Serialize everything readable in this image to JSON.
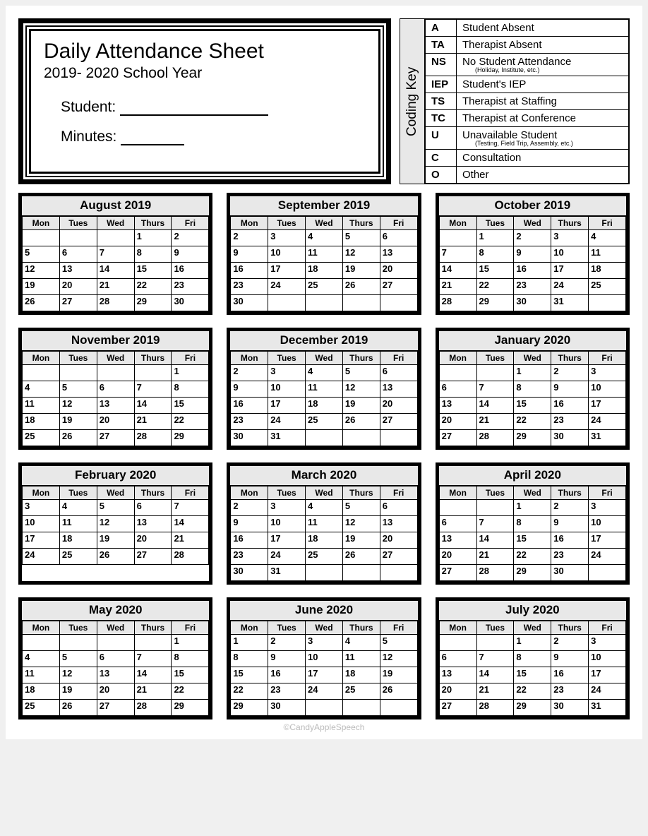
{
  "header": {
    "title": "Daily Attendance Sheet",
    "subtitle": "2019- 2020 School Year",
    "student_label": "Student:",
    "minutes_label": "Minutes:"
  },
  "coding_key": {
    "label": "Coding Key",
    "rows": [
      {
        "code": "A",
        "desc": "Student Absent",
        "note": ""
      },
      {
        "code": "TA",
        "desc": "Therapist Absent",
        "note": ""
      },
      {
        "code": "NS",
        "desc": "No Student Attendance",
        "note": "(Holiday, Institute, etc.)"
      },
      {
        "code": "IEP",
        "desc": "Student's IEP",
        "note": ""
      },
      {
        "code": "TS",
        "desc": "Therapist at Staffing",
        "note": ""
      },
      {
        "code": "TC",
        "desc": "Therapist at Conference",
        "note": ""
      },
      {
        "code": "U",
        "desc": "Unavailable Student",
        "note": "(Testing, Field Trip, Assembly, etc.)"
      },
      {
        "code": "C",
        "desc": "Consultation",
        "note": ""
      },
      {
        "code": "O",
        "desc": "Other",
        "note": ""
      }
    ]
  },
  "weekdays": [
    "Mon",
    "Tues",
    "Wed",
    "Thurs",
    "Fri"
  ],
  "months": [
    {
      "name": "August 2019",
      "weeks": [
        [
          "",
          "",
          "",
          "1",
          "2"
        ],
        [
          "5",
          "6",
          "7",
          "8",
          "9"
        ],
        [
          "12",
          "13",
          "14",
          "15",
          "16"
        ],
        [
          "19",
          "20",
          "21",
          "22",
          "23"
        ],
        [
          "26",
          "27",
          "28",
          "29",
          "30"
        ]
      ]
    },
    {
      "name": "September 2019",
      "weeks": [
        [
          "2",
          "3",
          "4",
          "5",
          "6"
        ],
        [
          "9",
          "10",
          "11",
          "12",
          "13"
        ],
        [
          "16",
          "17",
          "18",
          "19",
          "20"
        ],
        [
          "23",
          "24",
          "25",
          "26",
          "27"
        ],
        [
          "30",
          "",
          "",
          "",
          ""
        ]
      ]
    },
    {
      "name": "October 2019",
      "weeks": [
        [
          "",
          "1",
          "2",
          "3",
          "4"
        ],
        [
          "7",
          "8",
          "9",
          "10",
          "11"
        ],
        [
          "14",
          "15",
          "16",
          "17",
          "18"
        ],
        [
          "21",
          "22",
          "23",
          "24",
          "25"
        ],
        [
          "28",
          "29",
          "30",
          "31",
          ""
        ]
      ]
    },
    {
      "name": "November 2019",
      "weeks": [
        [
          "",
          "",
          "",
          "",
          "1"
        ],
        [
          "4",
          "5",
          "6",
          "7",
          "8"
        ],
        [
          "11",
          "12",
          "13",
          "14",
          "15"
        ],
        [
          "18",
          "19",
          "20",
          "21",
          "22"
        ],
        [
          "25",
          "26",
          "27",
          "28",
          "29"
        ]
      ]
    },
    {
      "name": "December 2019",
      "weeks": [
        [
          "2",
          "3",
          "4",
          "5",
          "6"
        ],
        [
          "9",
          "10",
          "11",
          "12",
          "13"
        ],
        [
          "16",
          "17",
          "18",
          "19",
          "20"
        ],
        [
          "23",
          "24",
          "25",
          "26",
          "27"
        ],
        [
          "30",
          "31",
          "",
          "",
          ""
        ]
      ]
    },
    {
      "name": "January 2020",
      "weeks": [
        [
          "",
          "",
          "1",
          "2",
          "3"
        ],
        [
          "6",
          "7",
          "8",
          "9",
          "10"
        ],
        [
          "13",
          "14",
          "15",
          "16",
          "17"
        ],
        [
          "20",
          "21",
          "22",
          "23",
          "24"
        ],
        [
          "27",
          "28",
          "29",
          "30",
          "31"
        ]
      ]
    },
    {
      "name": "February 2020",
      "weeks": [
        [
          "3",
          "4",
          "5",
          "6",
          "7"
        ],
        [
          "10",
          "11",
          "12",
          "13",
          "14"
        ],
        [
          "17",
          "18",
          "19",
          "20",
          "21"
        ],
        [
          "24",
          "25",
          "26",
          "27",
          "28"
        ]
      ]
    },
    {
      "name": "March 2020",
      "weeks": [
        [
          "2",
          "3",
          "4",
          "5",
          "6"
        ],
        [
          "9",
          "10",
          "11",
          "12",
          "13"
        ],
        [
          "16",
          "17",
          "18",
          "19",
          "20"
        ],
        [
          "23",
          "24",
          "25",
          "26",
          "27"
        ],
        [
          "30",
          "31",
          "",
          "",
          ""
        ]
      ]
    },
    {
      "name": "April 2020",
      "weeks": [
        [
          "",
          "",
          "1",
          "2",
          "3"
        ],
        [
          "6",
          "7",
          "8",
          "9",
          "10"
        ],
        [
          "13",
          "14",
          "15",
          "16",
          "17"
        ],
        [
          "20",
          "21",
          "22",
          "23",
          "24"
        ],
        [
          "27",
          "28",
          "29",
          "30",
          ""
        ]
      ]
    },
    {
      "name": "May 2020",
      "weeks": [
        [
          "",
          "",
          "",
          "",
          "1"
        ],
        [
          "4",
          "5",
          "6",
          "7",
          "8"
        ],
        [
          "11",
          "12",
          "13",
          "14",
          "15"
        ],
        [
          "18",
          "19",
          "20",
          "21",
          "22"
        ],
        [
          "25",
          "26",
          "27",
          "28",
          "29"
        ]
      ]
    },
    {
      "name": "June 2020",
      "weeks": [
        [
          "1",
          "2",
          "3",
          "4",
          "5"
        ],
        [
          "8",
          "9",
          "10",
          "11",
          "12"
        ],
        [
          "15",
          "16",
          "17",
          "18",
          "19"
        ],
        [
          "22",
          "23",
          "24",
          "25",
          "26"
        ],
        [
          "29",
          "30",
          "",
          "",
          ""
        ]
      ]
    },
    {
      "name": "July 2020",
      "weeks": [
        [
          "",
          "",
          "1",
          "2",
          "3"
        ],
        [
          "6",
          "7",
          "8",
          "9",
          "10"
        ],
        [
          "13",
          "14",
          "15",
          "16",
          "17"
        ],
        [
          "20",
          "21",
          "22",
          "23",
          "24"
        ],
        [
          "27",
          "28",
          "29",
          "30",
          "31"
        ]
      ]
    }
  ],
  "footer": "©CandyAppleSpeech",
  "colors": {
    "page_bg": "#ffffff",
    "header_bg": "#e8e8e8",
    "border": "#000000"
  }
}
